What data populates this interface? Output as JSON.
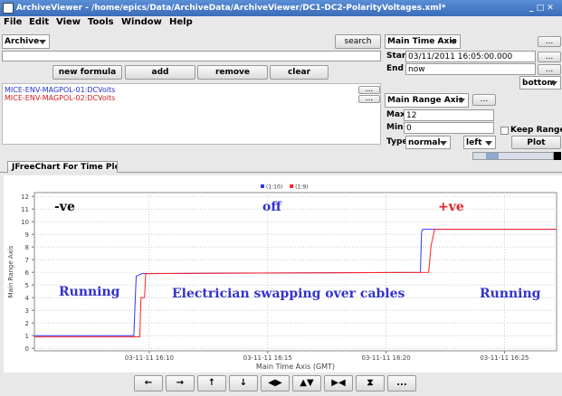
{
  "window": {
    "title": "ArchiveViewer - /home/epics/Data/ArchiveData/ArchiveViewer/DC1-DC2-PolarityVoltages.xml*",
    "menu": [
      "File",
      "Edit",
      "View",
      "Tools",
      "Window",
      "Help"
    ]
  },
  "left_panel": {
    "archive": "Archive",
    "search": "search",
    "buttons": [
      "new formula",
      "add",
      "remove",
      "clear"
    ],
    "items": [
      "MICE-ENV-MAGPOL-01:DCVolts",
      "MICE-ENV-MAGPOL-02:DCVolts"
    ],
    "more": "..."
  },
  "right_panel": {
    "time_axis": "Main Time Axis",
    "start_label": "Start",
    "start": "03/11/2011 16:05:00.000",
    "end_label": "End",
    "end": "now",
    "position": "bottom",
    "range_axis": "Main Range Axis",
    "max_label": "Max",
    "max": "12",
    "min_label": "Min",
    "min": "0",
    "keep": "Keep Ranges",
    "type_label": "Type",
    "type": "normal",
    "side": "left",
    "plot": "Plot"
  },
  "tab": "JFreeChart For Time Plots",
  "chart_data": {
    "type": "line",
    "x_label": "Main Time Axis (GMT)",
    "y_label": "Main Range Axis",
    "xlim": [
      5.15,
      27.2
    ],
    "xticks": [
      {
        "value": 10,
        "label": "03-11-11 16:10"
      },
      {
        "value": 15,
        "label": "03-11-11 16:15"
      },
      {
        "value": 20,
        "label": "03-11-11 16:20"
      },
      {
        "value": 25,
        "label": "03-11-11 16:25"
      }
    ],
    "ylim": [
      -0.2,
      12.3
    ],
    "yticks": [
      0,
      1,
      2,
      3,
      4,
      5,
      6,
      7,
      8,
      9,
      10,
      11,
      12
    ],
    "grid": true,
    "series": [
      {
        "name": "(1:10)",
        "color": "#3333ff",
        "x": [
          5.15,
          7,
          9.35,
          9.4,
          9.45,
          9.7,
          21.45,
          21.5,
          21.55,
          27.2
        ],
        "values": [
          1,
          1,
          1,
          3.5,
          5.7,
          5.9,
          6,
          9.2,
          9.4,
          9.4
        ]
      },
      {
        "name": "(1:9)",
        "color": "#ff2222",
        "x": [
          5.15,
          9.6,
          9.65,
          9.8,
          9.85,
          21.8,
          21.9,
          22.05,
          27.2
        ],
        "values": [
          0.9,
          0.9,
          4,
          4,
          5.9,
          6,
          8.1,
          9.4,
          9.4
        ]
      }
    ],
    "annotations": [
      {
        "text": "-ve",
        "color": "#000000"
      },
      {
        "text": "off",
        "color": "#3333cc"
      },
      {
        "text": "+ve",
        "color": "#dd2222"
      },
      {
        "text": "Running",
        "color": "#3333cc"
      },
      {
        "text": "Electrician swapping over cables",
        "color": "#3333cc"
      },
      {
        "text": "Running",
        "color": "#3333cc"
      }
    ]
  },
  "nav_buttons": [
    "←",
    "→",
    "↑",
    "↓",
    "◀▶",
    "▲▼",
    "▶◀",
    "⧗",
    "..."
  ]
}
